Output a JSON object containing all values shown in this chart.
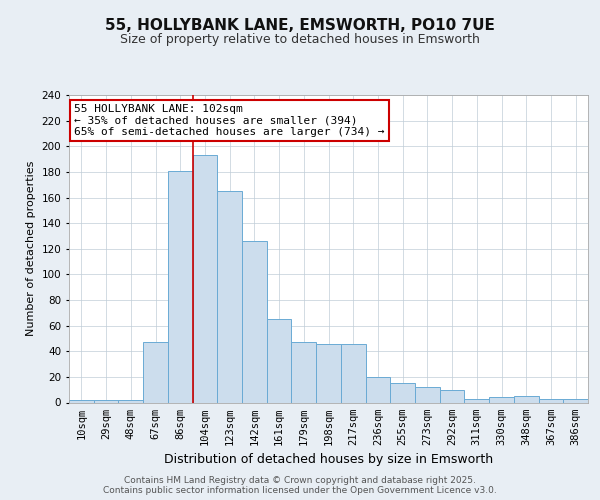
{
  "title": "55, HOLLYBANK LANE, EMSWORTH, PO10 7UE",
  "subtitle": "Size of property relative to detached houses in Emsworth",
  "xlabel": "Distribution of detached houses by size in Emsworth",
  "ylabel": "Number of detached properties",
  "categories": [
    "10sqm",
    "29sqm",
    "48sqm",
    "67sqm",
    "86sqm",
    "104sqm",
    "123sqm",
    "142sqm",
    "161sqm",
    "179sqm",
    "198sqm",
    "217sqm",
    "236sqm",
    "255sqm",
    "273sqm",
    "292sqm",
    "311sqm",
    "330sqm",
    "348sqm",
    "367sqm",
    "386sqm"
  ],
  "values": [
    2,
    2,
    2,
    47,
    181,
    193,
    165,
    126,
    65,
    47,
    46,
    46,
    20,
    15,
    12,
    10,
    3,
    4,
    5,
    3,
    3
  ],
  "bar_color": "#ccdded",
  "bar_edge_color": "#6aaad4",
  "highlight_index": 5,
  "highlight_line_color": "#cc0000",
  "annotation_box_text": "55 HOLLYBANK LANE: 102sqm\n← 35% of detached houses are smaller (394)\n65% of semi-detached houses are larger (734) →",
  "annotation_box_color": "#cc0000",
  "ylim": [
    0,
    240
  ],
  "yticks": [
    0,
    20,
    40,
    60,
    80,
    100,
    120,
    140,
    160,
    180,
    200,
    220,
    240
  ],
  "footer_text": "Contains HM Land Registry data © Crown copyright and database right 2025.\nContains public sector information licensed under the Open Government Licence v3.0.",
  "bg_color": "#e8eef4",
  "plot_bg_color": "#ffffff",
  "grid_color": "#c0cdd8",
  "title_fontsize": 11,
  "subtitle_fontsize": 9,
  "ylabel_fontsize": 8,
  "xlabel_fontsize": 9,
  "tick_fontsize": 7.5,
  "footer_fontsize": 6.5
}
